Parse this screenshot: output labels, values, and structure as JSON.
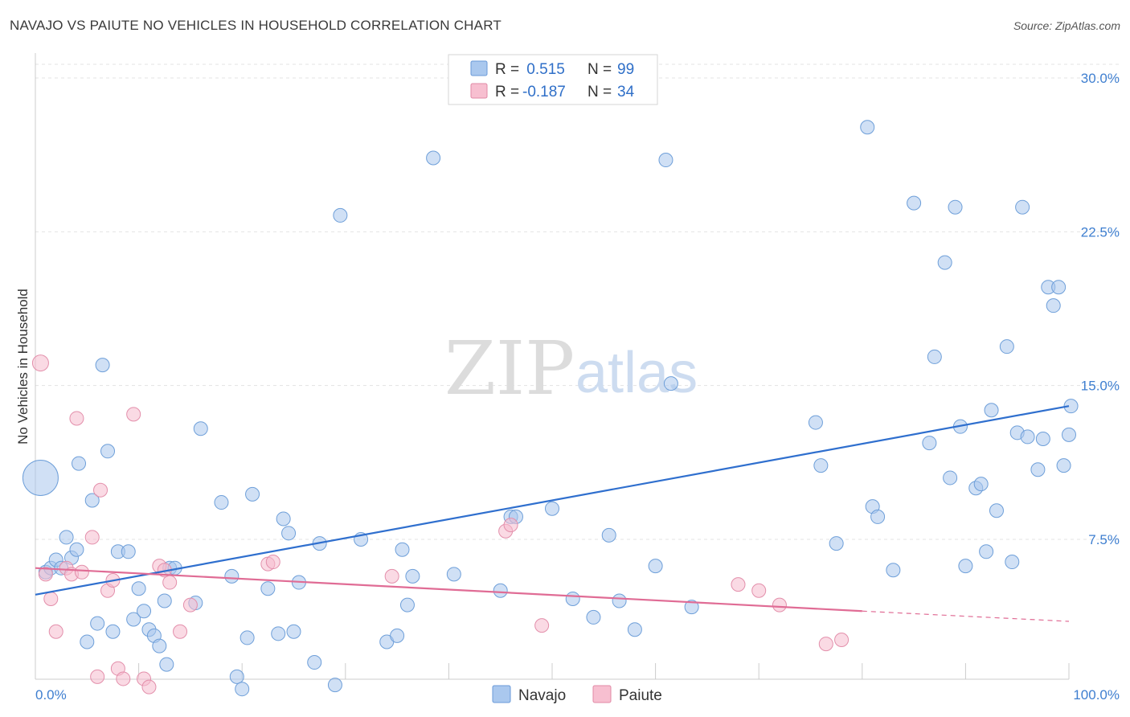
{
  "header": {
    "title": "NAVAJO VS PAIUTE NO VEHICLES IN HOUSEHOLD CORRELATION CHART",
    "source": "Source: ZipAtlas.com"
  },
  "watermark": {
    "zip": "ZIP",
    "atlas": "atlas"
  },
  "chart_data": {
    "type": "scatter",
    "ylabel": "No Vehicles in Household",
    "xlim": [
      0,
      100
    ],
    "ylim": [
      0,
      31.5
    ],
    "x_tick_labels": [
      {
        "value": 0,
        "label": "0.0%"
      },
      {
        "value": 100,
        "label": "100.0%"
      }
    ],
    "y_tick_labels": [
      {
        "value": 7.5,
        "label": "7.5%"
      },
      {
        "value": 15.0,
        "label": "15.0%"
      },
      {
        "value": 22.5,
        "label": "22.5%"
      },
      {
        "value": 30.0,
        "label": "30.0%"
      }
    ],
    "grid": true,
    "legend_position": "top-center",
    "stats_legend": [
      {
        "series": "Navajo",
        "r_label": "R =",
        "r_value": " 0.515",
        "n_label": "N =",
        "n_value": "99",
        "color": "#aac8ee",
        "border": "#6a9ad8"
      },
      {
        "series": "Paiute",
        "r_label": "R =",
        "r_value": "-0.187",
        "n_label": "N =",
        "n_value": "34",
        "color": "#f7bfd0",
        "border": "#e08aa6"
      }
    ],
    "series": [
      {
        "name": "Navajo",
        "color": "#a9c7ec",
        "stroke": "#6e9fd9",
        "trend_color": "#2f6fce",
        "trend": {
          "x1": 0,
          "y1": 4.8,
          "x2": 100,
          "y2": 14.0
        },
        "points": [
          [
            0.5,
            10.5,
            "big"
          ],
          [
            1,
            5.9
          ],
          [
            1.5,
            6.1
          ],
          [
            2,
            6.5
          ],
          [
            2.5,
            6.1
          ],
          [
            3,
            7.6
          ],
          [
            3.5,
            6.6
          ],
          [
            4,
            7.0
          ],
          [
            4.2,
            11.2
          ],
          [
            5,
            2.5
          ],
          [
            5.5,
            9.4
          ],
          [
            6,
            3.4
          ],
          [
            6.5,
            16.0
          ],
          [
            7,
            11.8
          ],
          [
            7.5,
            3.0
          ],
          [
            8,
            6.9
          ],
          [
            9,
            6.9
          ],
          [
            9.5,
            3.6
          ],
          [
            10,
            5.1
          ],
          [
            10.5,
            4.0
          ],
          [
            11,
            3.1
          ],
          [
            11.5,
            2.8
          ],
          [
            12,
            2.3
          ],
          [
            12.5,
            4.5
          ],
          [
            12.7,
            1.4
          ],
          [
            13,
            6.1
          ],
          [
            13.5,
            6.1
          ],
          [
            15.5,
            4.4
          ],
          [
            16,
            12.9
          ],
          [
            18,
            9.3
          ],
          [
            19,
            5.7
          ],
          [
            19.5,
            0.8
          ],
          [
            20,
            0.2
          ],
          [
            20.5,
            2.7
          ],
          [
            21,
            9.7
          ],
          [
            22.5,
            5.1
          ],
          [
            23.5,
            2.9
          ],
          [
            24,
            8.5
          ],
          [
            24.5,
            7.8
          ],
          [
            25,
            3.0
          ],
          [
            25.5,
            5.4
          ],
          [
            27,
            1.5
          ],
          [
            27.5,
            7.3
          ],
          [
            29,
            0.4
          ],
          [
            29.5,
            23.3
          ],
          [
            31.5,
            7.5
          ],
          [
            34,
            2.5
          ],
          [
            35,
            2.8
          ],
          [
            35.5,
            7.0
          ],
          [
            36,
            4.3
          ],
          [
            36.5,
            5.7
          ],
          [
            38.5,
            26.1
          ],
          [
            40.5,
            5.8
          ],
          [
            45,
            5.0
          ],
          [
            46,
            8.6
          ],
          [
            46.5,
            8.6
          ],
          [
            50,
            9.0
          ],
          [
            52,
            4.6
          ],
          [
            54,
            3.7
          ],
          [
            55.5,
            7.7
          ],
          [
            56.5,
            4.5
          ],
          [
            58,
            3.1
          ],
          [
            60,
            6.2
          ],
          [
            61,
            26.0
          ],
          [
            61.5,
            15.1
          ],
          [
            63.5,
            4.2
          ],
          [
            75.5,
            13.2
          ],
          [
            76,
            11.1
          ],
          [
            77.5,
            7.3
          ],
          [
            80.5,
            27.6
          ],
          [
            81,
            9.1
          ],
          [
            81.5,
            8.6
          ],
          [
            83,
            6.0
          ],
          [
            85,
            23.9
          ],
          [
            86.5,
            12.2
          ],
          [
            87,
            16.4
          ],
          [
            88,
            21.0
          ],
          [
            88.5,
            10.5
          ],
          [
            89,
            23.7
          ],
          [
            89.5,
            13.0
          ],
          [
            90,
            6.2
          ],
          [
            91,
            10.0
          ],
          [
            91.5,
            10.2
          ],
          [
            92,
            6.9
          ],
          [
            92.5,
            13.8
          ],
          [
            93,
            8.9
          ],
          [
            94,
            16.9
          ],
          [
            94.5,
            6.4
          ],
          [
            95,
            12.7
          ],
          [
            95.5,
            23.7
          ],
          [
            96,
            12.5
          ],
          [
            97,
            10.9
          ],
          [
            97.5,
            12.4
          ],
          [
            98,
            19.8
          ],
          [
            98.5,
            18.9
          ],
          [
            99,
            19.8
          ],
          [
            99.5,
            11.1
          ],
          [
            100,
            12.6
          ],
          [
            100.2,
            14.0
          ]
        ]
      },
      {
        "name": "Paiute",
        "color": "#f6bccd",
        "stroke": "#e38fab",
        "trend_color": "#e06c95",
        "trend": {
          "x1": 0,
          "y1": 6.1,
          "x2": 80,
          "y2": 4.0
        },
        "trend_dashed": {
          "x1": 80,
          "y1": 4.0,
          "x2": 100,
          "y2": 3.5
        },
        "points": [
          [
            0.5,
            16.1,
            "medium"
          ],
          [
            1,
            5.8
          ],
          [
            1.5,
            4.6
          ],
          [
            2,
            3.0
          ],
          [
            3,
            6.1
          ],
          [
            3.5,
            5.8
          ],
          [
            4,
            13.4
          ],
          [
            4.5,
            5.9
          ],
          [
            5.5,
            7.6
          ],
          [
            6,
            0.8
          ],
          [
            6.3,
            9.9
          ],
          [
            7,
            5.0
          ],
          [
            7.5,
            5.5
          ],
          [
            8,
            1.2
          ],
          [
            8.5,
            0.7
          ],
          [
            9.5,
            13.6
          ],
          [
            10.5,
            0.7
          ],
          [
            11,
            0.3
          ],
          [
            12,
            6.2
          ],
          [
            12.5,
            6.0
          ],
          [
            13,
            5.4
          ],
          [
            14,
            3.0
          ],
          [
            15,
            4.3
          ],
          [
            22.5,
            6.3
          ],
          [
            23,
            6.4
          ],
          [
            34.5,
            5.7
          ],
          [
            45.5,
            7.9
          ],
          [
            46,
            8.2
          ],
          [
            49,
            3.3
          ],
          [
            68,
            5.3
          ],
          [
            70,
            5.0
          ],
          [
            72,
            4.3
          ],
          [
            76.5,
            2.4
          ],
          [
            78,
            2.6
          ]
        ]
      }
    ]
  }
}
